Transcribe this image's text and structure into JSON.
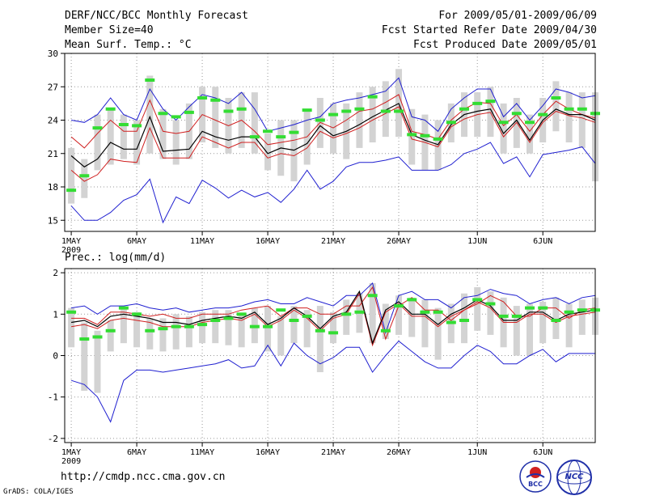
{
  "header": {
    "title": "DERF/NCC/BCC Monthly Forecast",
    "member_size": "Member Size=40",
    "variable": "Mean Surf. Temp.: °C",
    "period": "For 2009/05/01-2009/06/09",
    "started": "Fcst Started Refer Date 2009/04/30",
    "produced": "Fcst Produced Date 2009/05/01"
  },
  "footer": {
    "url": "http://cmdp.ncc.cma.gov.cn",
    "grads": "GrADS: COLA/IGES",
    "logo_left": "BCC",
    "logo_right": "NCC"
  },
  "colors": {
    "max": "#1f1fd0",
    "min": "#1f1fd0",
    "upper": "#d01f1f",
    "lower": "#d01f1f",
    "mean": "#000000",
    "obs": "#33dd33",
    "box": "#d3d3d3"
  },
  "chart_data": [
    {
      "type": "line",
      "title": "Mean Surf. Temp.: °C",
      "ylim": [
        14,
        30
      ],
      "yticks": [
        15,
        18,
        21,
        24,
        27,
        30
      ],
      "xlim": [
        0.5,
        41
      ],
      "xticks": [
        {
          "d": 1,
          "label": "1MAY"
        },
        {
          "d": 6,
          "label": "6MAY"
        },
        {
          "d": 11,
          "label": "11MAY"
        },
        {
          "d": 16,
          "label": "16MAY"
        },
        {
          "d": 21,
          "label": "21MAY"
        },
        {
          "d": 26,
          "label": "26MAY"
        },
        {
          "d": 32,
          "label": "1JUN"
        },
        {
          "d": 37,
          "label": "6JUN"
        }
      ],
      "year_label": "2009",
      "series": [
        {
          "name": "max",
          "values": [
            24.0,
            23.8,
            24.5,
            26.0,
            24.5,
            24.0,
            26.8,
            25.0,
            24.0,
            25.2,
            26.3,
            26.0,
            25.5,
            26.5,
            25.0,
            23.0,
            23.3,
            23.6,
            24.0,
            24.3,
            25.5,
            25.8,
            26.0,
            26.3,
            26.6,
            27.8,
            24.3,
            24.0,
            23.0,
            25.0,
            26.0,
            26.8,
            26.8,
            24.3,
            25.5,
            24.0,
            25.3,
            26.8,
            26.5,
            26.0,
            26.2
          ]
        },
        {
          "name": "upper",
          "values": [
            22.5,
            21.5,
            22.8,
            24.0,
            23.0,
            23.0,
            25.8,
            23.0,
            22.8,
            23.0,
            24.5,
            24.0,
            23.5,
            24.0,
            23.0,
            21.8,
            22.0,
            22.2,
            22.5,
            23.8,
            23.3,
            24.0,
            24.8,
            25.0,
            25.6,
            26.3,
            23.0,
            22.7,
            22.3,
            24.0,
            25.0,
            25.6,
            25.5,
            23.5,
            24.5,
            23.0,
            24.5,
            25.7,
            25.0,
            24.5,
            24.2
          ]
        },
        {
          "name": "mean",
          "values": [
            20.8,
            19.8,
            20.5,
            22.0,
            21.4,
            21.4,
            24.3,
            21.2,
            21.3,
            21.4,
            23.0,
            22.5,
            22.2,
            22.5,
            22.5,
            21.0,
            21.5,
            21.3,
            21.9,
            23.5,
            22.6,
            23.0,
            23.6,
            24.3,
            24.9,
            25.5,
            22.7,
            22.2,
            21.8,
            23.6,
            24.5,
            24.8,
            25.0,
            22.8,
            24.0,
            22.2,
            24.0,
            25.0,
            24.5,
            24.5,
            24.0
          ]
        },
        {
          "name": "lower",
          "values": [
            19.5,
            18.5,
            19.1,
            20.5,
            20.3,
            20.2,
            23.3,
            20.6,
            20.6,
            20.6,
            22.5,
            22.0,
            21.5,
            22.0,
            22.0,
            20.6,
            21.0,
            20.8,
            21.5,
            23.0,
            22.4,
            22.8,
            23.3,
            24.0,
            24.6,
            25.2,
            22.3,
            22.0,
            21.6,
            23.4,
            24.1,
            24.5,
            24.7,
            22.5,
            23.8,
            22.0,
            23.8,
            24.8,
            24.4,
            24.2,
            23.8
          ]
        },
        {
          "name": "min",
          "values": [
            16.3,
            15.0,
            15.0,
            15.7,
            16.8,
            17.3,
            18.7,
            14.8,
            17.1,
            16.5,
            18.6,
            17.9,
            17.0,
            17.7,
            17.1,
            17.5,
            16.6,
            17.8,
            19.5,
            17.8,
            18.5,
            19.8,
            20.2,
            20.2,
            20.4,
            20.7,
            19.5,
            19.5,
            19.5,
            20.0,
            21.0,
            21.4,
            22.0,
            20.1,
            20.7,
            18.9,
            20.9,
            21.1,
            21.3,
            21.6,
            20.1
          ]
        },
        {
          "name": "box_top",
          "values": [
            21.5,
            20.5,
            24.5,
            25.0,
            24.5,
            24.0,
            28.0,
            25.0,
            24.0,
            25.5,
            27.0,
            27.0,
            26.0,
            26.5,
            26.5,
            22.8,
            24.0,
            24.0,
            25.0,
            26.0,
            25.5,
            25.5,
            26.5,
            27.0,
            27.5,
            28.6,
            25.0,
            24.5,
            24.0,
            25.5,
            26.5,
            26.5,
            27.0,
            25.5,
            26.0,
            24.5,
            26.0,
            27.5,
            26.5,
            26.5,
            26.5
          ]
        },
        {
          "name": "box_bottom",
          "values": [
            16.5,
            17.0,
            19.5,
            20.0,
            20.5,
            20.0,
            21.0,
            20.5,
            20.0,
            20.5,
            22.0,
            21.5,
            21.0,
            21.5,
            21.0,
            19.5,
            19.0,
            18.5,
            20.0,
            21.5,
            21.0,
            20.5,
            21.5,
            22.0,
            22.5,
            22.5,
            20.0,
            19.5,
            19.5,
            22.0,
            22.5,
            22.5,
            22.5,
            21.0,
            21.5,
            21.0,
            22.0,
            23.0,
            22.0,
            21.5,
            18.5
          ]
        },
        {
          "name": "observed",
          "values": [
            17.7,
            19.0,
            23.3,
            25.0,
            23.6,
            23.5,
            27.6,
            24.6,
            24.3,
            24.7,
            26.0,
            25.8,
            24.8,
            25.0,
            22.5,
            23.0,
            22.5,
            22.9,
            24.9,
            24.0,
            24.5,
            24.8,
            25.0,
            26.1,
            24.8,
            24.8,
            22.7,
            22.6,
            22.3,
            23.8,
            25.0,
            25.5,
            25.7,
            23.8,
            24.6,
            23.8,
            24.5,
            26.0,
            25.0,
            25.0,
            24.6
          ]
        }
      ]
    },
    {
      "type": "line",
      "title": "Prec.: log(mm/d)",
      "ylim": [
        -2.1,
        2.1
      ],
      "yticks": [
        -2,
        -1,
        0,
        1,
        2
      ],
      "xlim": [
        0.5,
        41
      ],
      "xticks": [
        {
          "d": 1,
          "label": "1MAY"
        },
        {
          "d": 6,
          "label": "6MAY"
        },
        {
          "d": 11,
          "label": "11MAY"
        },
        {
          "d": 16,
          "label": "16MAY"
        },
        {
          "d": 21,
          "label": "21MAY"
        },
        {
          "d": 26,
          "label": "26MAY"
        },
        {
          "d": 32,
          "label": "1JUN"
        },
        {
          "d": 37,
          "label": "6JUN"
        }
      ],
      "year_label": "2009",
      "series": [
        {
          "name": "max",
          "values": [
            1.15,
            1.2,
            1.0,
            1.2,
            1.2,
            1.25,
            1.15,
            1.1,
            1.15,
            1.05,
            1.1,
            1.15,
            1.15,
            1.2,
            1.3,
            1.35,
            1.25,
            1.25,
            1.4,
            1.3,
            1.2,
            1.45,
            1.45,
            1.75,
            0.55,
            1.45,
            1.55,
            1.35,
            1.35,
            1.15,
            1.4,
            1.45,
            1.6,
            1.5,
            1.45,
            1.25,
            1.35,
            1.4,
            1.25,
            1.4,
            1.45
          ]
        },
        {
          "name": "upper",
          "values": [
            0.9,
            0.9,
            0.75,
            1.05,
            1.05,
            1.0,
            0.95,
            1.0,
            0.9,
            0.9,
            1.0,
            1.0,
            1.0,
            1.1,
            1.15,
            1.2,
            0.95,
            1.15,
            1.15,
            1.0,
            1.0,
            1.2,
            1.2,
            1.65,
            0.4,
            1.2,
            1.4,
            1.1,
            1.1,
            0.85,
            1.1,
            1.25,
            1.45,
            1.3,
            0.95,
            0.95,
            1.15,
            1.15,
            0.9,
            1.1,
            1.15
          ]
        },
        {
          "name": "mean",
          "values": [
            0.8,
            0.85,
            0.7,
            0.95,
            1.0,
            0.95,
            0.9,
            0.8,
            0.8,
            0.75,
            0.85,
            0.9,
            0.95,
            0.9,
            1.05,
            0.75,
            0.9,
            1.15,
            0.95,
            0.65,
            0.95,
            1.05,
            1.55,
            0.3,
            1.1,
            1.3,
            1.0,
            1.0,
            0.75,
            1.0,
            1.15,
            1.35,
            1.2,
            0.85,
            0.85,
            1.05,
            1.05,
            0.85,
            1.0,
            1.05,
            1.1
          ]
        },
        {
          "name": "lower",
          "values": [
            0.7,
            0.75,
            0.65,
            0.85,
            0.9,
            0.85,
            0.8,
            0.7,
            0.7,
            0.7,
            0.8,
            0.85,
            0.9,
            0.85,
            1.0,
            0.7,
            0.85,
            1.1,
            0.9,
            0.6,
            0.9,
            1.0,
            1.5,
            0.25,
            1.05,
            1.25,
            0.95,
            0.95,
            0.7,
            0.95,
            1.1,
            1.3,
            1.15,
            0.8,
            0.8,
            1.0,
            1.0,
            0.8,
            0.95,
            1.0,
            1.05
          ]
        },
        {
          "name": "min",
          "values": [
            -0.6,
            -0.7,
            -1.0,
            -1.6,
            -0.6,
            -0.35,
            -0.35,
            -0.4,
            -0.35,
            -0.3,
            -0.25,
            -0.2,
            -0.1,
            -0.3,
            -0.25,
            0.25,
            -0.25,
            0.3,
            0.0,
            -0.2,
            -0.05,
            0.2,
            0.2,
            -0.4,
            0.0,
            0.35,
            0.1,
            -0.15,
            -0.3,
            -0.3,
            0.0,
            0.25,
            0.1,
            -0.2,
            -0.2,
            0.0,
            0.15,
            -0.15,
            0.05,
            0.05,
            0.05
          ]
        },
        {
          "name": "box_top",
          "values": [
            1.15,
            0.8,
            0.6,
            0.85,
            1.15,
            1.05,
            0.9,
            0.9,
            1.0,
            0.95,
            1.05,
            1.1,
            1.1,
            1.0,
            1.15,
            1.2,
            0.95,
            1.2,
            1.1,
            1.2,
            1.05,
            1.35,
            1.5,
            1.75,
            1.25,
            1.45,
            1.4,
            1.35,
            1.15,
            1.25,
            1.5,
            1.65,
            1.55,
            1.4,
            1.2,
            1.25,
            1.3,
            1.4,
            1.25,
            1.35,
            1.4
          ]
        },
        {
          "name": "box_bottom",
          "values": [
            0.2,
            -0.85,
            -0.9,
            0.1,
            0.3,
            0.2,
            0.15,
            0.1,
            0.15,
            0.2,
            0.3,
            0.3,
            0.25,
            0.2,
            0.3,
            0.1,
            0.0,
            0.3,
            0.2,
            -0.4,
            0.3,
            0.5,
            0.55,
            0.3,
            0.4,
            0.5,
            0.45,
            0.2,
            -0.1,
            0.3,
            0.3,
            0.6,
            0.5,
            0.2,
            0.0,
            0.0,
            0.3,
            0.4,
            0.2,
            0.5,
            0.5
          ]
        },
        {
          "name": "observed",
          "values": [
            1.05,
            0.4,
            0.45,
            0.6,
            1.15,
            1.0,
            0.6,
            0.65,
            0.7,
            0.7,
            0.75,
            0.85,
            0.9,
            1.0,
            0.7,
            0.7,
            1.1,
            0.85,
            0.95,
            0.6,
            0.55,
            1.0,
            1.05,
            1.45,
            0.6,
            1.2,
            1.35,
            1.05,
            1.05,
            0.8,
            0.85,
            1.35,
            1.25,
            0.95,
            0.95,
            1.15,
            1.15,
            0.85,
            1.05,
            1.1,
            1.1
          ]
        }
      ]
    }
  ]
}
